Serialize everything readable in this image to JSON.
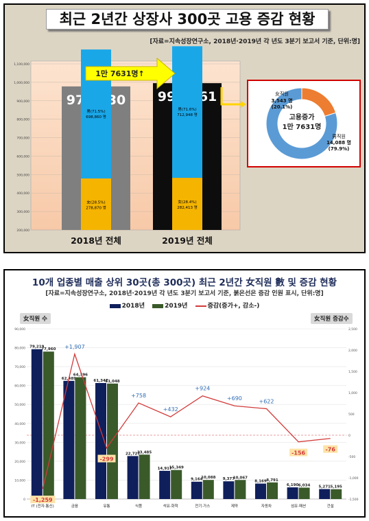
{
  "top": {
    "title": "최근 2년간 상장사 300곳 고용 증감 현황",
    "source": "[자료=지속성장연구소, 2018년·2019년 각 년도 3분기 보고서 기준, 단위:명]",
    "increase_arrow": "1만 7631명↑",
    "donut": {
      "center_line1": "고용증가",
      "center_line2": "1만 7631명",
      "female_label": "女직원",
      "female_value": "3,543 명",
      "female_pct": "(20.1%)",
      "male_label": "男직원",
      "male_value": "14,088 명",
      "male_pct": "(79.9%)"
    }
  },
  "bottom": {
    "title": "10개 업종별 매출 상위 30곳(총 300곳) 최근 2년간 女직원 數 및 증감 현황",
    "source": "[자료=지속성장연구소, 2018년·2019년 각 년도 3분기 보고서 기준, 붉은선은 증감 인원 표시, 단위:명]",
    "left_axis_badge": "女직원 수",
    "right_axis_badge": "女직원 증감수",
    "legend": {
      "s2018": "2018년",
      "s2019": "2019년",
      "change": "증감(증가+, 감소-)"
    }
  },
  "chart_data": [
    {
      "type": "bar",
      "categories": [
        "2018년 전체",
        "2019년 전체"
      ],
      "totals": [
        977730,
        995361
      ],
      "total_labels": [
        "977,730",
        "995,361"
      ],
      "series": [
        {
          "name": "男",
          "values": [
            698860,
            712948
          ],
          "pct_labels": [
            "男(71.5%)",
            "男(71.6%)"
          ],
          "value_labels": [
            "698,860 명",
            "712,948 명"
          ],
          "color": "#1aa7e8"
        },
        {
          "name": "女",
          "values": [
            278870,
            282413
          ],
          "pct_labels": [
            "女(28.5%)",
            "女(28.4%)"
          ],
          "value_labels": [
            "278,870 명",
            "282,413 명"
          ],
          "color": "#f5b400"
        }
      ],
      "total_colors": [
        "#7f7f7f",
        "#0d0d0d"
      ],
      "ylim": [
        200000,
        1100000
      ],
      "yticks": [
        "200,000",
        "300,000",
        "400,000",
        "500,000",
        "600,000",
        "700,000",
        "800,000",
        "900,000",
        "1,000,000",
        "1,100,000"
      ],
      "grid": true
    },
    {
      "type": "pie",
      "labels": [
        "男직원",
        "女직원"
      ],
      "values": [
        14088,
        3543
      ],
      "colors": [
        "#5b9bd5",
        "#ed7d31"
      ]
    },
    {
      "type": "bar",
      "categories": [
        "IT (전자·통신)",
        "금융",
        "유통",
        "식품",
        "석유·화학",
        "전기·가스",
        "제약",
        "자동차",
        "섬유·패션",
        "건설"
      ],
      "series": [
        {
          "name": "2018년",
          "values": [
            79219,
            62489,
            61347,
            22727,
            14917,
            9164,
            9377,
            8169,
            6190,
            5271
          ],
          "labels": [
            "79,219",
            "62,489",
            "61,347",
            "22,727",
            "14,917",
            "9,164",
            "9,377",
            "8,169",
            "6,190",
            "5,271"
          ],
          "color": "#0f1f5c"
        },
        {
          "name": "2019년",
          "values": [
            77960,
            64396,
            61048,
            23485,
            15349,
            10088,
            10067,
            8791,
            6034,
            5195
          ],
          "labels": [
            "77,960",
            "64,396",
            "61,048",
            "23,485",
            "15,349",
            "10,088",
            "10,067",
            "8,791",
            "6,034",
            "5,195"
          ],
          "color": "#3a5a2a"
        },
        {
          "name": "증감(증가+, 감소-)",
          "values": [
            -1259,
            1907,
            -299,
            758,
            432,
            924,
            690,
            622,
            -156,
            -76
          ],
          "labels": [
            "-1,259",
            "+1,907",
            "-299",
            "+758",
            "+432",
            "+924",
            "+690",
            "+622",
            "-156",
            "-76"
          ],
          "color": "#d23a3a",
          "axis": "right"
        }
      ],
      "ylim": [
        0,
        90000
      ],
      "yticks_left": [
        "0",
        "10,000",
        "20,000",
        "30,000",
        "40,000",
        "50,000",
        "60,000",
        "70,000",
        "80,000",
        "90,000"
      ],
      "ylim_right": [
        -1500,
        2500
      ],
      "yticks_right": [
        "-1,500",
        "-1,000",
        "-500",
        "0",
        "500",
        "1,000",
        "1,500",
        "2,000",
        "2,500"
      ],
      "grid": true
    }
  ]
}
